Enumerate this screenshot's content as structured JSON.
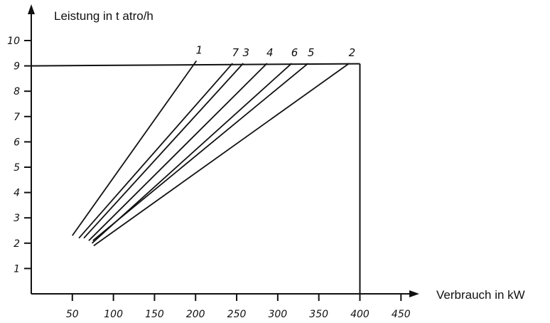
{
  "chart_data": {
    "type": "line",
    "title": "",
    "xlabel": "Verbrauch in kW",
    "ylabel": "Leistung in t atro/h",
    "xlim": [
      0,
      470
    ],
    "ylim": [
      0,
      11
    ],
    "x_ticks": [
      "50",
      "100",
      "150",
      "200",
      "250",
      "300",
      "350",
      "400",
      "450"
    ],
    "y_ticks": [
      "1",
      "2",
      "3",
      "4",
      "5",
      "6",
      "7",
      "8",
      "9",
      "10"
    ],
    "grid": false,
    "legend": "none",
    "limit_box": {
      "x_max": 400,
      "y_max": 9
    },
    "series": [
      {
        "name": "1",
        "points": [
          [
            50,
            2.3
          ],
          [
            201,
            9.2
          ]
        ]
      },
      {
        "name": "7",
        "points": [
          [
            58,
            2.2
          ],
          [
            245,
            9.1
          ]
        ]
      },
      {
        "name": "3",
        "points": [
          [
            64,
            2.2
          ],
          [
            258,
            9.1
          ]
        ]
      },
      {
        "name": "4",
        "points": [
          [
            70,
            2.1
          ],
          [
            287,
            9.1
          ]
        ]
      },
      {
        "name": "6",
        "points": [
          [
            74,
            2.0
          ],
          [
            317,
            9.1
          ]
        ]
      },
      {
        "name": "5",
        "points": [
          [
            75,
            2.1
          ],
          [
            337,
            9.1
          ]
        ]
      },
      {
        "name": "2",
        "points": [
          [
            76,
            1.9
          ],
          [
            387,
            9.1
          ]
        ]
      }
    ]
  }
}
